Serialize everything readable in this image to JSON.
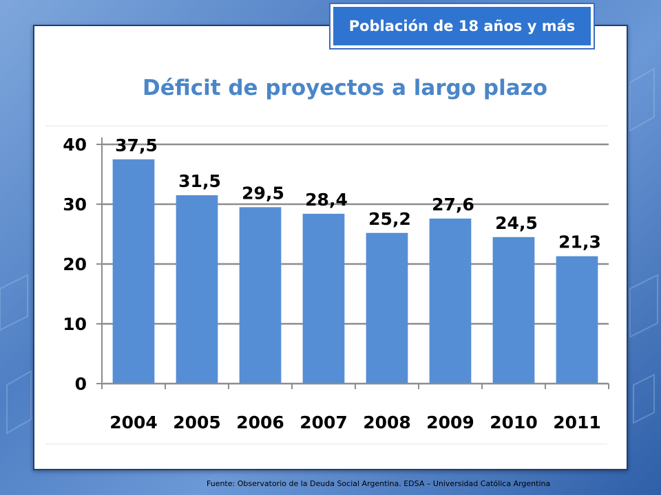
{
  "badge": {
    "text": "Población de 18 años y más"
  },
  "source": {
    "text": "Fuente:   Observatorio de  la Deuda Social Argentina. EDSA  – Universidad Católica Argentina"
  },
  "chart_data": {
    "type": "bar",
    "title": "Déficit de proyectos a largo plazo",
    "xlabel": "",
    "ylabel": "",
    "categories": [
      "2004",
      "2005",
      "2006",
      "2007",
      "2008",
      "2009",
      "2010",
      "2011"
    ],
    "values": [
      37.5,
      31.5,
      29.5,
      28.4,
      25.2,
      27.6,
      24.5,
      21.3
    ],
    "value_labels": [
      "37,5",
      "31,5",
      "29,5",
      "28,4",
      "25,2",
      "27,6",
      "24,5",
      "21,3"
    ],
    "ylim": [
      0,
      40
    ],
    "yticks": [
      0,
      10,
      20,
      30,
      40
    ],
    "grid": true,
    "legend": "none",
    "bar_color": "#558ed5"
  }
}
